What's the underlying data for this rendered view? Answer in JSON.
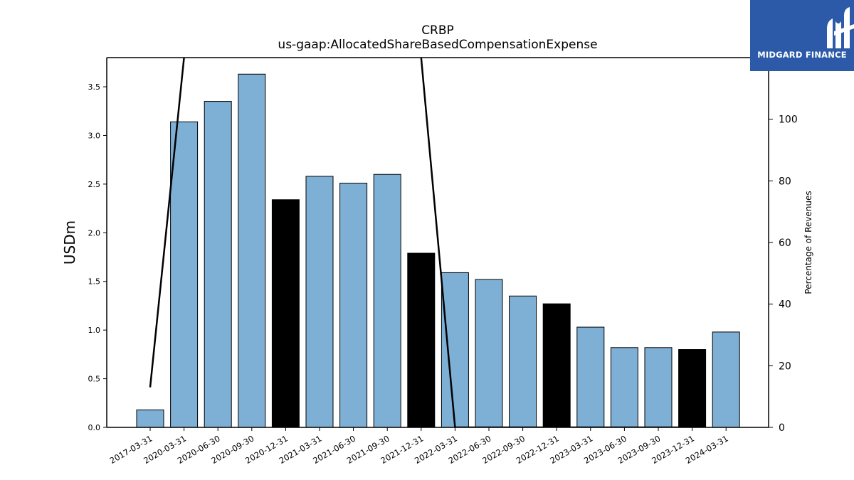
{
  "chart_data": {
    "type": "bar",
    "title": "CRBP",
    "subtitle": "us-gaap:AllocatedShareBasedCompensationExpense",
    "ylabel": "USDm",
    "y2label": "Percentage of Revenues",
    "ylim": [
      0,
      3.8
    ],
    "y2lim": [
      0,
      120
    ],
    "yticks": [
      "0.0",
      "0.5",
      "1.0",
      "1.5",
      "2.0",
      "2.5",
      "3.0",
      "3.5"
    ],
    "y2ticks": [
      "0",
      "20",
      "40",
      "60",
      "80",
      "100"
    ],
    "categories": [
      "2017-03-31",
      "2020-03-31",
      "2020-06-30",
      "2020-09-30",
      "2020-12-31",
      "2021-03-31",
      "2021-06-30",
      "2021-09-30",
      "2021-12-31",
      "2022-03-31",
      "2022-06-30",
      "2022-09-30",
      "2022-12-31",
      "2023-03-31",
      "2023-06-30",
      "2023-09-30",
      "2023-12-31",
      "2024-03-31"
    ],
    "values": [
      0.18,
      3.14,
      3.35,
      3.63,
      2.34,
      2.58,
      2.51,
      2.6,
      1.79,
      1.59,
      1.52,
      1.35,
      1.27,
      1.03,
      0.82,
      0.82,
      0.8,
      0.98
    ],
    "highlight": [
      false,
      false,
      false,
      false,
      true,
      false,
      false,
      false,
      true,
      false,
      false,
      false,
      true,
      false,
      false,
      false,
      true,
      false
    ],
    "colors": {
      "bar": "#7eb0d5",
      "highlight": "#000000",
      "edge": "#000000",
      "line": "#000000"
    },
    "percentage_of_revenues": [
      13,
      120,
      null,
      null,
      null,
      null,
      null,
      null,
      120,
      0,
      0,
      0,
      0,
      0,
      0,
      0,
      0,
      null
    ],
    "grid": false,
    "legend": "none"
  },
  "logo": {
    "text": "MIDGARD FINANCE",
    "color": "#2c5aa8"
  }
}
